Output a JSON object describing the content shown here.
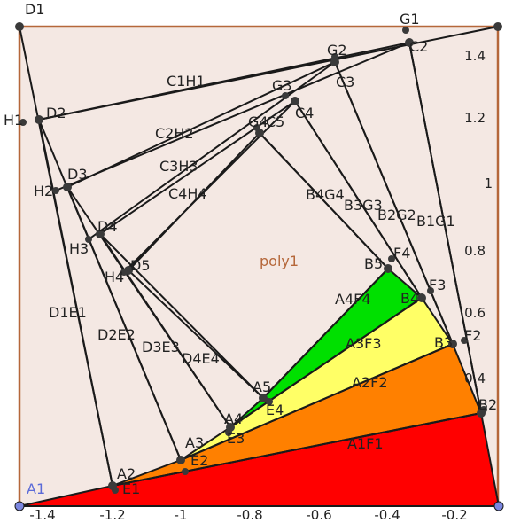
{
  "colors": {
    "background": "#f4e8e3",
    "frame": "#b5673a",
    "line": "#1a1a1a",
    "point": "#3a3a3a",
    "blue_point": "#7b86e0",
    "fill_red": "#ff0000",
    "fill_orange": "#ff8000",
    "fill_yellow": "#ffff66",
    "fill_green": "#00e000"
  },
  "axes": {
    "x_ticks": [
      "-1.4",
      "-1.2",
      "-1",
      "-0.8",
      "-0.6",
      "-0.4",
      "-0.2"
    ],
    "y_ticks": [
      "1.4",
      "1.2",
      "1",
      "0.8",
      "0.6",
      "0.4"
    ]
  },
  "labels": {
    "A1": "A1",
    "A2": "A2",
    "A3": "A3",
    "A4": "A4",
    "A5": "A5",
    "B2": "B2",
    "B3": "B3",
    "B4": "B4",
    "B5": "B5",
    "C2": "C2",
    "C3": "C3",
    "C4": "C4",
    "C5": "C5",
    "D1": "D1",
    "D2": "D2",
    "D3": "D3",
    "D4": "D4",
    "D5": "D5",
    "E1": "E1",
    "E2": "E2",
    "E3": "E3",
    "E4": "E4",
    "F2": "F2",
    "F3": "F3",
    "F4": "F4",
    "G1": "G1",
    "G2": "G2",
    "G3": "G3",
    "G4": "G4",
    "H1": "H1",
    "H2": "H2",
    "H3": "H3",
    "H4": "H4",
    "A1F1": "A1F1",
    "A2F2": "A2F2",
    "A3F3": "A3F3",
    "A4F4": "A4F4",
    "B1G1": "B1G1",
    "B2G2": "B2G2",
    "B3G3": "B3G3",
    "B4G4": "B4G4",
    "C1H1": "C1H1",
    "C2H2": "C2H2",
    "C3H3": "C3H3",
    "C4H4": "C4H4",
    "D1E1": "D1E1",
    "D2E2": "D2E2",
    "D3E3": "D3E3",
    "D4E4": "D4E4",
    "poly1": "poly1"
  }
}
